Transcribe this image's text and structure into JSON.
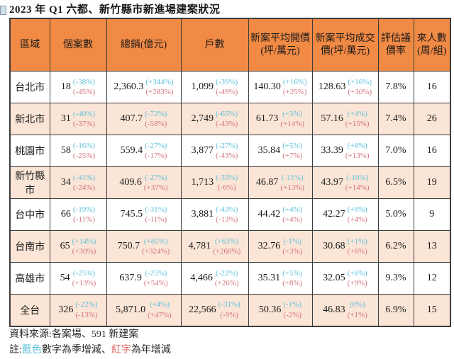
{
  "title": "2023 年 Q1 六都、新竹縣市新進場建案狀況",
  "colors": {
    "header_bg": "#f18a44",
    "row_alt_bg": "#fbe5d6",
    "quarter_change_blue": "#5bc2dd",
    "year_change_red": "#d4737f",
    "note_red": "#e06565",
    "border": "#3d3d3d"
  },
  "table": {
    "headers": [
      "區域",
      "個案數",
      "總銷(億元)",
      "戶數",
      "新案平均開價(坪/萬元)",
      "新案平均成交價(坪/萬元)",
      "評估議價率",
      "來人數(周/組)"
    ],
    "rows": [
      {
        "region": "台北市",
        "cases": {
          "v": "18",
          "q": "(-38%)",
          "y": "(-45%)"
        },
        "sales": {
          "v": "2,360.3",
          "q": "(+344%)",
          "y": "(+283%)"
        },
        "units": {
          "v": "1,099",
          "q": "(-39%)",
          "y": "(-49%)"
        },
        "ask": {
          "v": "140.30",
          "q": "(+16%)",
          "y": "(+25%)"
        },
        "deal": {
          "v": "128.63",
          "q": "(+16%)",
          "y": "(+30%)"
        },
        "rate": "7.8%",
        "visitors": "16"
      },
      {
        "region": "新北市",
        "cases": {
          "v": "31",
          "q": "(-40%)",
          "y": "(-37%)"
        },
        "sales": {
          "v": "407.7",
          "q": "(-72%)",
          "y": "(-58%)"
        },
        "units": {
          "v": "2,749",
          "q": "(-65%)",
          "y": "(-43%)"
        },
        "ask": {
          "v": "61.73",
          "q": "(+3%)",
          "y": "(+14%)"
        },
        "deal": {
          "v": "57.16",
          "q": "(+4%)",
          "y": "(+15%)"
        },
        "rate": "7.4%",
        "visitors": "26"
      },
      {
        "region": "桃園市",
        "cases": {
          "v": "58",
          "q": "(-16%)",
          "y": "(-25%)"
        },
        "sales": {
          "v": "559.4",
          "q": "(-27%)",
          "y": "(-17%)"
        },
        "units": {
          "v": "3,877",
          "q": "(-27%)",
          "y": "(-43%)"
        },
        "ask": {
          "v": "35.84",
          "q": "(+5%)",
          "y": "(+7%)"
        },
        "deal": {
          "v": "33.39",
          "q": "(+8%)",
          "y": "(+13%)"
        },
        "rate": "7.0%",
        "visitors": "16"
      },
      {
        "region": "新竹縣市",
        "cases": {
          "v": "34",
          "q": "(-41%)",
          "y": "(-24%)"
        },
        "sales": {
          "v": "409.6",
          "q": "(-27%)",
          "y": "(+37%)"
        },
        "units": {
          "v": "1,713",
          "q": "(-33%)",
          "y": "(-6%)"
        },
        "ask": {
          "v": "46.87",
          "q": "(-11%)",
          "y": "(+13%)"
        },
        "deal": {
          "v": "43.97",
          "q": "(-10%)",
          "y": "(+14%)"
        },
        "rate": "6.5%",
        "visitors": "19"
      },
      {
        "region": "台中市",
        "cases": {
          "v": "66",
          "q": "(-19%)",
          "y": "(-11%)"
        },
        "sales": {
          "v": "745.5",
          "q": "(-31%)",
          "y": "(-11%)"
        },
        "units": {
          "v": "3,881",
          "q": "(-43%)",
          "y": "(-13%)"
        },
        "ask": {
          "v": "44.42",
          "q": "(+4%)",
          "y": "(+4%)"
        },
        "deal": {
          "v": "42.27",
          "q": "(+6%)",
          "y": "(+4%)"
        },
        "rate": "5.0%",
        "visitors": "9"
      },
      {
        "region": "台南市",
        "cases": {
          "v": "65",
          "q": "(+14%)",
          "y": "(+30%)"
        },
        "sales": {
          "v": "750.7",
          "q": "(+85%)",
          "y": "(+324%)"
        },
        "units": {
          "v": "4,781",
          "q": "(+63%)",
          "y": "(+260%)"
        },
        "ask": {
          "v": "32.76",
          "q": "(-1%)",
          "y": "(+3%)"
        },
        "deal": {
          "v": "30.68",
          "q": "(+1%)",
          "y": "(+6%)"
        },
        "rate": "6.2%",
        "visitors": "13"
      },
      {
        "region": "高雄市",
        "cases": {
          "v": "54",
          "q": "(-25%)",
          "y": "(+13%)"
        },
        "sales": {
          "v": "637.9",
          "q": "(-25%)",
          "y": "(+54%)"
        },
        "units": {
          "v": "4,466",
          "q": "(-22%)",
          "y": "(+26%)"
        },
        "ask": {
          "v": "35.31",
          "q": "(+5%)",
          "y": "(+8%)"
        },
        "deal": {
          "v": "32.05",
          "q": "(+6%)",
          "y": "(+9%)"
        },
        "rate": "9.3%",
        "visitors": "12"
      },
      {
        "region": "全台",
        "cases": {
          "v": "326",
          "q": "(-22%)",
          "y": "(-13%)"
        },
        "sales": {
          "v": "5,871.0",
          "q": "(+4%)",
          "y": "(+47%)"
        },
        "units": {
          "v": "22,566",
          "q": "(-31%)",
          "y": "(-9%)"
        },
        "ask": {
          "v": "50.36",
          "q": "(-1%)",
          "y": "(-2%)"
        },
        "deal": {
          "v": "46.83",
          "q": "(0%)",
          "y": "(+1%)"
        },
        "rate": "6.9%",
        "visitors": "15"
      }
    ]
  },
  "footer": {
    "source": "資料來源:各案場、591 新建案",
    "note_prefix": "註:",
    "note_blue": "藍色",
    "note_mid": "數字為季增減、",
    "note_red": "紅字",
    "note_suffix": "為年增減"
  }
}
